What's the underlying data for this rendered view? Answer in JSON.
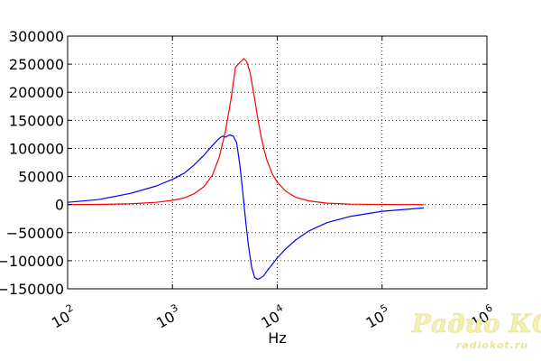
{
  "chart_data": {
    "type": "line",
    "title": "",
    "xlabel": "Hz",
    "ylabel": "",
    "xscale": "log",
    "xlim": [
      100,
      1000000
    ],
    "ylim": [
      -150000,
      300000
    ],
    "grid": true,
    "x_ticks": [
      {
        "value": 100,
        "base": "10",
        "exp": "2"
      },
      {
        "value": 1000,
        "base": "10",
        "exp": "3"
      },
      {
        "value": 10000,
        "base": "10",
        "exp": "4"
      },
      {
        "value": 100000,
        "base": "10",
        "exp": "5"
      },
      {
        "value": 1000000,
        "base": "10",
        "exp": "6"
      }
    ],
    "y_ticks": [
      {
        "value": 300000,
        "label": "300000"
      },
      {
        "value": 250000,
        "label": "250000"
      },
      {
        "value": 200000,
        "label": "200000"
      },
      {
        "value": 150000,
        "label": "150000"
      },
      {
        "value": 100000,
        "label": "100000"
      },
      {
        "value": 50000,
        "label": "50000"
      },
      {
        "value": 0,
        "label": "0"
      },
      {
        "value": -50000,
        "label": "−50000"
      },
      {
        "value": -100000,
        "label": "−100000"
      },
      {
        "value": -150000,
        "label": "−150000"
      }
    ],
    "series": [
      {
        "color": "#ff0000",
        "x": [
          100,
          200,
          400,
          700,
          1000,
          1300,
          1600,
          2000,
          2400,
          2800,
          3200,
          3600,
          4000,
          4500,
          4800,
          5100,
          5500,
          6000,
          6500,
          7000,
          7500,
          8000,
          9000,
          10000,
          12000,
          15000,
          20000,
          30000,
          50000,
          100000,
          250000
        ],
        "y": [
          0,
          300,
          1500,
          4000,
          7500,
          12000,
          19000,
          32000,
          52000,
          85000,
          130000,
          185000,
          245000,
          255000,
          260000,
          255000,
          235000,
          195000,
          155000,
          122000,
          97000,
          78000,
          54000,
          40000,
          24000,
          13000,
          6500,
          2500,
          800,
          200,
          0
        ]
      },
      {
        "color": "#0000ff",
        "x": [
          100,
          200,
          400,
          700,
          1000,
          1300,
          1600,
          2000,
          2400,
          2800,
          3000,
          3200,
          3500,
          3800,
          4100,
          4400,
          4700,
          5000,
          5300,
          5700,
          6100,
          6500,
          6900,
          7400,
          8000,
          9000,
          10000,
          12000,
          15000,
          20000,
          30000,
          50000,
          100000,
          250000
        ],
        "y": [
          4000,
          9000,
          20000,
          33000,
          45000,
          56000,
          70000,
          88000,
          105000,
          118000,
          122000,
          120000,
          124000,
          122000,
          110000,
          70000,
          20000,
          -30000,
          -72000,
          -112000,
          -130000,
          -133000,
          -131000,
          -127000,
          -118000,
          -106000,
          -95000,
          -79000,
          -63000,
          -47000,
          -32000,
          -21000,
          -12000,
          -6000
        ]
      }
    ],
    "watermark": {
      "main": "Радио КОТ",
      "sub": "radiokot.ru",
      "color": "#f0eba0"
    }
  }
}
